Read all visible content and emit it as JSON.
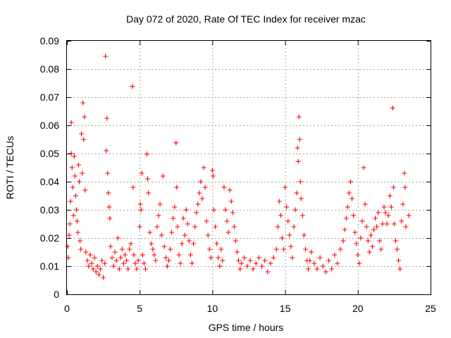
{
  "chart_data": {
    "type": "scatter",
    "title": "Day 072 of 2020, Rate Of TEC Index for receiver mzac",
    "xlabel": "GPS time / hours",
    "ylabel": "ROTI / TECUs",
    "xlim": [
      0,
      25
    ],
    "ylim": [
      0,
      0.09
    ],
    "x_ticks": [
      "0",
      "5",
      "10",
      "15",
      "20",
      "25"
    ],
    "y_ticks": [
      "0",
      "0.01",
      "0.02",
      "0.03",
      "0.04",
      "0.05",
      "0.06",
      "0.07",
      "0.08",
      "0.09"
    ],
    "grid": true,
    "marker": "+",
    "color": "#ff0000",
    "points": [
      [
        0.05,
        0.017
      ],
      [
        0.1,
        0.013
      ],
      [
        0.15,
        0.021
      ],
      [
        0.2,
        0.025
      ],
      [
        0.25,
        0.033
      ],
      [
        0.3,
        0.05
      ],
      [
        0.3,
        0.061
      ],
      [
        0.35,
        0.045
      ],
      [
        0.4,
        0.038
      ],
      [
        0.45,
        0.028
      ],
      [
        0.5,
        0.049
      ],
      [
        0.55,
        0.042
      ],
      [
        0.6,
        0.035
      ],
      [
        0.65,
        0.03
      ],
      [
        0.7,
        0.026
      ],
      [
        0.75,
        0.022
      ],
      [
        0.8,
        0.046
      ],
      [
        0.85,
        0.04
      ],
      [
        0.9,
        0.019
      ],
      [
        0.95,
        0.016
      ],
      [
        1.0,
        0.057
      ],
      [
        1.05,
        0.043
      ],
      [
        1.1,
        0.068
      ],
      [
        1.15,
        0.055
      ],
      [
        1.2,
        0.063
      ],
      [
        1.25,
        0.037
      ],
      [
        1.3,
        0.015
      ],
      [
        1.4,
        0.012
      ],
      [
        1.5,
        0.01
      ],
      [
        1.6,
        0.014
      ],
      [
        1.7,
        0.011
      ],
      [
        1.8,
        0.009
      ],
      [
        1.9,
        0.013
      ],
      [
        2.0,
        0.008
      ],
      [
        2.1,
        0.01
      ],
      [
        2.2,
        0.007
      ],
      [
        2.3,
        0.009
      ],
      [
        2.4,
        0.012
      ],
      [
        2.5,
        0.006
      ],
      [
        2.6,
        0.011
      ],
      [
        2.65,
        0.0845
      ],
      [
        2.7,
        0.051
      ],
      [
        2.75,
        0.0625
      ],
      [
        2.8,
        0.043
      ],
      [
        2.85,
        0.036
      ],
      [
        2.9,
        0.031
      ],
      [
        2.95,
        0.027
      ],
      [
        3.0,
        0.017
      ],
      [
        3.1,
        0.013
      ],
      [
        3.2,
        0.01
      ],
      [
        3.3,
        0.015
      ],
      [
        3.4,
        0.012
      ],
      [
        3.5,
        0.02
      ],
      [
        3.6,
        0.009
      ],
      [
        3.7,
        0.013
      ],
      [
        3.8,
        0.016
      ],
      [
        3.9,
        0.011
      ],
      [
        4.0,
        0.014
      ],
      [
        4.1,
        0.012
      ],
      [
        4.2,
        0.009
      ],
      [
        4.3,
        0.016
      ],
      [
        4.4,
        0.018
      ],
      [
        4.5,
        0.0738
      ],
      [
        4.55,
        0.038
      ],
      [
        4.6,
        0.014
      ],
      [
        4.7,
        0.011
      ],
      [
        4.8,
        0.009
      ],
      [
        4.9,
        0.012
      ],
      [
        5.0,
        0.024
      ],
      [
        5.05,
        0.032
      ],
      [
        5.1,
        0.03
      ],
      [
        5.15,
        0.043
      ],
      [
        5.2,
        0.014
      ],
      [
        5.3,
        0.011
      ],
      [
        5.4,
        0.009
      ],
      [
        5.5,
        0.0498
      ],
      [
        5.55,
        0.041
      ],
      [
        5.6,
        0.036
      ],
      [
        5.7,
        0.022
      ],
      [
        5.8,
        0.018
      ],
      [
        5.9,
        0.016
      ],
      [
        6.0,
        0.014
      ],
      [
        6.1,
        0.012
      ],
      [
        6.2,
        0.024
      ],
      [
        6.3,
        0.028
      ],
      [
        6.4,
        0.032
      ],
      [
        6.5,
        0.021
      ],
      [
        6.6,
        0.042
      ],
      [
        6.7,
        0.017
      ],
      [
        6.8,
        0.013
      ],
      [
        6.9,
        0.01
      ],
      [
        7.0,
        0.012
      ],
      [
        7.1,
        0.016
      ],
      [
        7.2,
        0.022
      ],
      [
        7.3,
        0.027
      ],
      [
        7.4,
        0.031
      ],
      [
        7.5,
        0.0538
      ],
      [
        7.55,
        0.038
      ],
      [
        7.6,
        0.024
      ],
      [
        7.7,
        0.014
      ],
      [
        7.8,
        0.011
      ],
      [
        7.9,
        0.018
      ],
      [
        8.0,
        0.027
      ],
      [
        8.1,
        0.021
      ],
      [
        8.2,
        0.03
      ],
      [
        8.3,
        0.025
      ],
      [
        8.4,
        0.019
      ],
      [
        8.5,
        0.014
      ],
      [
        8.6,
        0.011
      ],
      [
        8.7,
        0.018
      ],
      [
        8.8,
        0.024
      ],
      [
        8.9,
        0.029
      ],
      [
        9.0,
        0.032
      ],
      [
        9.1,
        0.036
      ],
      [
        9.2,
        0.04
      ],
      [
        9.3,
        0.034
      ],
      [
        9.4,
        0.045
      ],
      [
        9.5,
        0.038
      ],
      [
        9.6,
        0.026
      ],
      [
        9.7,
        0.021
      ],
      [
        9.8,
        0.016
      ],
      [
        9.9,
        0.013
      ],
      [
        10.0,
        0.044
      ],
      [
        10.05,
        0.042
      ],
      [
        10.1,
        0.03
      ],
      [
        10.2,
        0.024
      ],
      [
        10.3,
        0.018
      ],
      [
        10.4,
        0.013
      ],
      [
        10.5,
        0.01
      ],
      [
        10.6,
        0.016
      ],
      [
        10.7,
        0.012
      ],
      [
        10.8,
        0.038
      ],
      [
        10.9,
        0.03
      ],
      [
        11.0,
        0.026
      ],
      [
        11.1,
        0.022
      ],
      [
        11.2,
        0.037
      ],
      [
        11.3,
        0.033
      ],
      [
        11.4,
        0.029
      ],
      [
        11.5,
        0.024
      ],
      [
        11.6,
        0.019
      ],
      [
        11.7,
        0.015
      ],
      [
        11.8,
        0.012
      ],
      [
        11.9,
        0.009
      ],
      [
        12.0,
        0.011
      ],
      [
        12.2,
        0.013
      ],
      [
        12.4,
        0.01
      ],
      [
        12.6,
        0.012
      ],
      [
        12.8,
        0.009
      ],
      [
        13.0,
        0.011
      ],
      [
        13.2,
        0.013
      ],
      [
        13.4,
        0.01
      ],
      [
        13.6,
        0.012
      ],
      [
        13.8,
        0.008
      ],
      [
        14.0,
        0.011
      ],
      [
        14.2,
        0.013
      ],
      [
        14.4,
        0.016
      ],
      [
        14.5,
        0.024
      ],
      [
        14.6,
        0.033
      ],
      [
        14.7,
        0.028
      ],
      [
        14.8,
        0.02
      ],
      [
        14.9,
        0.016
      ],
      [
        15.0,
        0.038
      ],
      [
        15.1,
        0.031
      ],
      [
        15.2,
        0.026
      ],
      [
        15.3,
        0.021
      ],
      [
        15.4,
        0.017
      ],
      [
        15.5,
        0.013
      ],
      [
        15.6,
        0.024
      ],
      [
        15.7,
        0.03
      ],
      [
        15.8,
        0.036
      ],
      [
        15.85,
        0.052
      ],
      [
        15.9,
        0.0472
      ],
      [
        15.95,
        0.063
      ],
      [
        16.0,
        0.055
      ],
      [
        16.05,
        0.04
      ],
      [
        16.1,
        0.034
      ],
      [
        16.2,
        0.028
      ],
      [
        16.3,
        0.021
      ],
      [
        16.4,
        0.016
      ],
      [
        16.5,
        0.012
      ],
      [
        16.6,
        0.009
      ],
      [
        16.7,
        0.012
      ],
      [
        16.8,
        0.015
      ],
      [
        17.0,
        0.011
      ],
      [
        17.2,
        0.009
      ],
      [
        17.4,
        0.013
      ],
      [
        17.6,
        0.01
      ],
      [
        17.8,
        0.008
      ],
      [
        18.0,
        0.012
      ],
      [
        18.2,
        0.009
      ],
      [
        18.4,
        0.014
      ],
      [
        18.6,
        0.011
      ],
      [
        18.8,
        0.016
      ],
      [
        19.0,
        0.019
      ],
      [
        19.1,
        0.023
      ],
      [
        19.2,
        0.027
      ],
      [
        19.3,
        0.031
      ],
      [
        19.4,
        0.036
      ],
      [
        19.5,
        0.04
      ],
      [
        19.6,
        0.034
      ],
      [
        19.7,
        0.028
      ],
      [
        19.8,
        0.022
      ],
      [
        19.9,
        0.018
      ],
      [
        20.0,
        0.014
      ],
      [
        20.1,
        0.011
      ],
      [
        20.2,
        0.02
      ],
      [
        20.3,
        0.026
      ],
      [
        20.4,
        0.045
      ],
      [
        20.5,
        0.032
      ],
      [
        20.6,
        0.024
      ],
      [
        20.7,
        0.019
      ],
      [
        20.8,
        0.015
      ],
      [
        20.9,
        0.021
      ],
      [
        21.0,
        0.017
      ],
      [
        21.1,
        0.023
      ],
      [
        21.2,
        0.027
      ],
      [
        21.3,
        0.024
      ],
      [
        21.4,
        0.029
      ],
      [
        21.5,
        0.019
      ],
      [
        21.6,
        0.016
      ],
      [
        21.7,
        0.025
      ],
      [
        21.8,
        0.031
      ],
      [
        21.9,
        0.029
      ],
      [
        22.0,
        0.025
      ],
      [
        22.1,
        0.028
      ],
      [
        22.2,
        0.035
      ],
      [
        22.3,
        0.031
      ],
      [
        22.4,
        0.0662
      ],
      [
        22.45,
        0.038
      ],
      [
        22.5,
        0.025
      ],
      [
        22.6,
        0.019
      ],
      [
        22.7,
        0.016
      ],
      [
        22.8,
        0.012
      ],
      [
        22.9,
        0.009
      ],
      [
        23.0,
        0.026
      ],
      [
        23.1,
        0.032
      ],
      [
        23.2,
        0.043
      ],
      [
        23.25,
        0.038
      ],
      [
        23.3,
        0.024
      ],
      [
        23.5,
        0.028
      ]
    ]
  }
}
